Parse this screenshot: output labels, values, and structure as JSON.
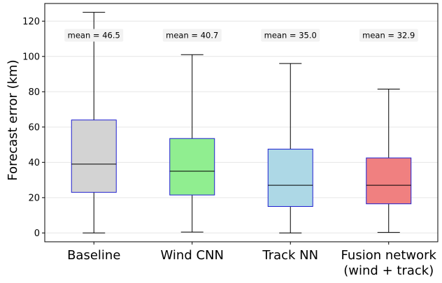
{
  "chart_data": {
    "type": "box",
    "ylabel": "Forecast error (km)",
    "xlabel": "",
    "ylim": [
      -5,
      130
    ],
    "yticks": [
      0,
      20,
      40,
      60,
      80,
      100,
      120
    ],
    "grid": "horizontal",
    "categories": [
      [
        "Baseline"
      ],
      [
        "Wind CNN"
      ],
      [
        "Track NN"
      ],
      [
        "Fusion network",
        "(wind + track)"
      ]
    ],
    "boxes": [
      {
        "whisker_low": 0,
        "q1": 23.0,
        "median": 39.0,
        "q3": 64.0,
        "whisker_high": 125.0,
        "mean_label": "mean = 46.5",
        "color": "#d3d3d3"
      },
      {
        "whisker_low": 0.5,
        "q1": 21.5,
        "median": 35.0,
        "q3": 53.5,
        "whisker_high": 101.0,
        "mean_label": "mean = 40.7",
        "color": "#90ee90"
      },
      {
        "whisker_low": 0,
        "q1": 15.0,
        "median": 27.0,
        "q3": 47.5,
        "whisker_high": 96.0,
        "mean_label": "mean = 35.0",
        "color": "#add8e6"
      },
      {
        "whisker_low": 0.3,
        "q1": 16.5,
        "median": 27.0,
        "q3": 42.5,
        "whisker_high": 81.5,
        "mean_label": "mean = 32.9",
        "color": "#f08080"
      }
    ],
    "mean_label_y": 112,
    "box_edge_color": "#1f1fd0",
    "mean_label_bg": "#f2f2f2"
  }
}
